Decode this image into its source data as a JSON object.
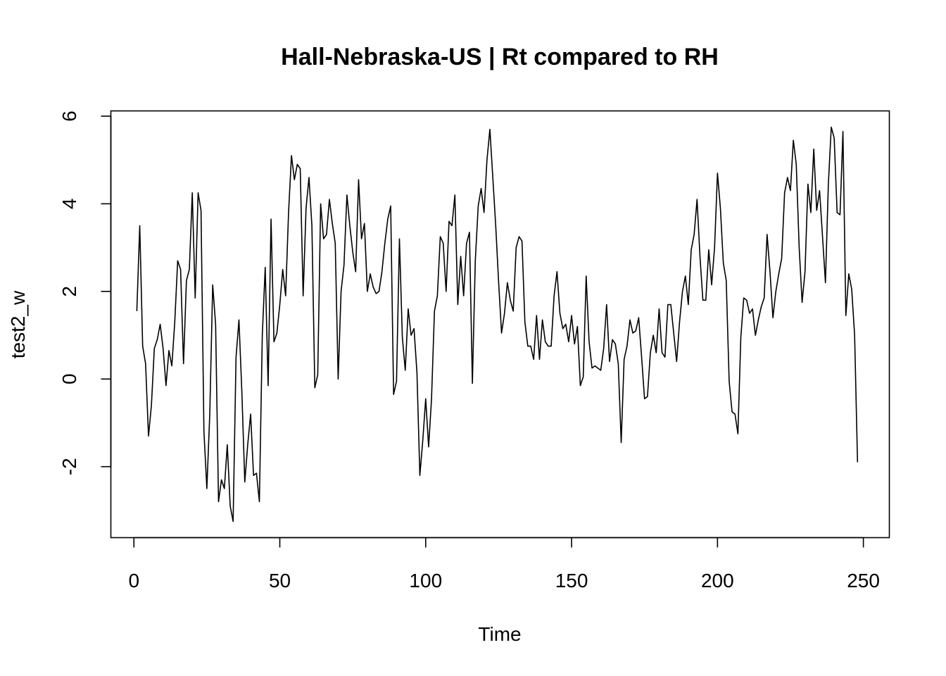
{
  "chart_data": {
    "type": "line",
    "title": "Hall-Nebraska-US | Rt compared to RH",
    "xlabel": "Time",
    "ylabel": "test2_w",
    "xlim": [
      -7.9,
      258.9
    ],
    "ylim": [
      -3.62,
      6.12
    ],
    "xticks": [
      0,
      50,
      100,
      150,
      200,
      250
    ],
    "yticks": [
      -2,
      0,
      2,
      4,
      6
    ],
    "grid": false,
    "legend": "none",
    "line_color": "#000000",
    "x_start": 1,
    "series": [
      {
        "values": [
          1.55,
          3.5,
          0.75,
          0.35,
          -1.3,
          -0.6,
          0.7,
          0.9,
          1.25,
          0.7,
          -0.15,
          0.65,
          0.3,
          1.3,
          2.7,
          2.5,
          0.35,
          2.25,
          2.5,
          4.25,
          1.85,
          4.25,
          3.85,
          -1.2,
          -2.5,
          -0.8,
          2.15,
          1.25,
          -2.8,
          -2.3,
          -2.5,
          -1.5,
          -2.9,
          -3.25,
          0.5,
          1.35,
          -0.3,
          -2.35,
          -1.5,
          -0.8,
          -2.2,
          -2.15,
          -2.8,
          1.0,
          2.55,
          -0.15,
          3.65,
          0.85,
          1.05,
          1.7,
          2.5,
          1.9,
          3.8,
          5.1,
          4.55,
          4.9,
          4.8,
          1.9,
          3.9,
          4.6,
          3.5,
          -0.2,
          0.1,
          4.0,
          3.2,
          3.3,
          4.1,
          3.55,
          3.1,
          0.0,
          2.0,
          2.6,
          4.2,
          3.5,
          2.9,
          2.45,
          4.55,
          3.2,
          3.55,
          2.0,
          2.4,
          2.1,
          1.95,
          2.0,
          2.45,
          3.1,
          3.65,
          3.95,
          -0.35,
          -0.05,
          3.2,
          0.95,
          0.2,
          1.6,
          1.0,
          1.15,
          0.15,
          -2.2,
          -1.4,
          -0.45,
          -1.55,
          -0.45,
          1.55,
          1.9,
          3.25,
          3.1,
          2.0,
          3.6,
          3.5,
          4.2,
          1.7,
          2.8,
          1.9,
          3.1,
          3.35,
          -0.1,
          2.7,
          3.95,
          4.35,
          3.8,
          5.0,
          5.7,
          4.6,
          3.5,
          2.2,
          1.05,
          1.5,
          2.2,
          1.8,
          1.55,
          3.0,
          3.25,
          3.15,
          1.3,
          0.75,
          0.75,
          0.45,
          1.45,
          0.45,
          1.35,
          0.85,
          0.75,
          0.75,
          1.9,
          2.45,
          1.5,
          1.15,
          1.25,
          0.85,
          1.45,
          0.8,
          1.2,
          -0.15,
          0.05,
          2.35,
          0.85,
          0.25,
          0.3,
          0.25,
          0.2,
          0.7,
          1.7,
          0.4,
          0.9,
          0.8,
          0.35,
          -1.45,
          0.45,
          0.75,
          1.35,
          1.05,
          1.1,
          1.4,
          0.5,
          -0.45,
          -0.4,
          0.6,
          1.0,
          0.6,
          1.6,
          0.6,
          0.5,
          1.7,
          1.7,
          1.05,
          0.4,
          1.3,
          2.0,
          2.35,
          1.7,
          2.95,
          3.3,
          4.1,
          2.8,
          1.8,
          1.8,
          2.95,
          2.15,
          3.0,
          4.7,
          3.9,
          2.65,
          2.25,
          -0.05,
          -0.75,
          -0.8,
          -1.25,
          0.95,
          1.85,
          1.8,
          1.5,
          1.6,
          1.0,
          1.35,
          1.65,
          1.85,
          3.3,
          2.45,
          1.4,
          2.0,
          2.4,
          2.75,
          4.25,
          4.6,
          4.3,
          5.45,
          4.9,
          3.0,
          1.75,
          2.45,
          4.45,
          3.8,
          5.25,
          3.85,
          4.3,
          3.25,
          2.2,
          4.45,
          5.75,
          5.5,
          3.8,
          3.75,
          5.65,
          1.45,
          2.4,
          2.05,
          1.0,
          -1.9
        ]
      }
    ]
  }
}
